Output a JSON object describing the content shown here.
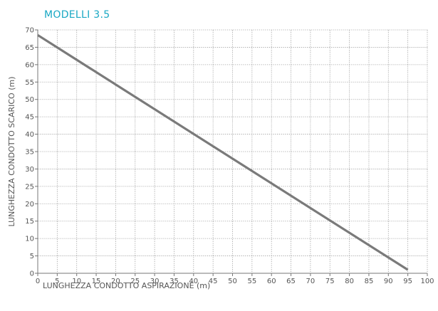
{
  "chart_data": {
    "type": "line",
    "title": "MODELLI 3.5",
    "xlabel": "LUNGHEZZA CONDOTTO ASPIRAZIONE (m)",
    "ylabel": "LUNGHEZZA CONDOTTO SCARICO (m)",
    "xlim": [
      0,
      100
    ],
    "ylim": [
      0,
      70
    ],
    "x_ticks": [
      0,
      5,
      10,
      15,
      20,
      25,
      30,
      35,
      40,
      45,
      50,
      55,
      60,
      65,
      70,
      75,
      80,
      85,
      90,
      95,
      100
    ],
    "y_ticks": [
      0,
      5,
      10,
      15,
      20,
      25,
      30,
      35,
      40,
      45,
      50,
      55,
      60,
      65,
      70
    ],
    "grid": true,
    "series": [
      {
        "x": [
          0,
          95
        ],
        "values": [
          68.5,
          1
        ],
        "color": "#7a7a7a"
      }
    ],
    "title_color": "#1aa8c4"
  }
}
